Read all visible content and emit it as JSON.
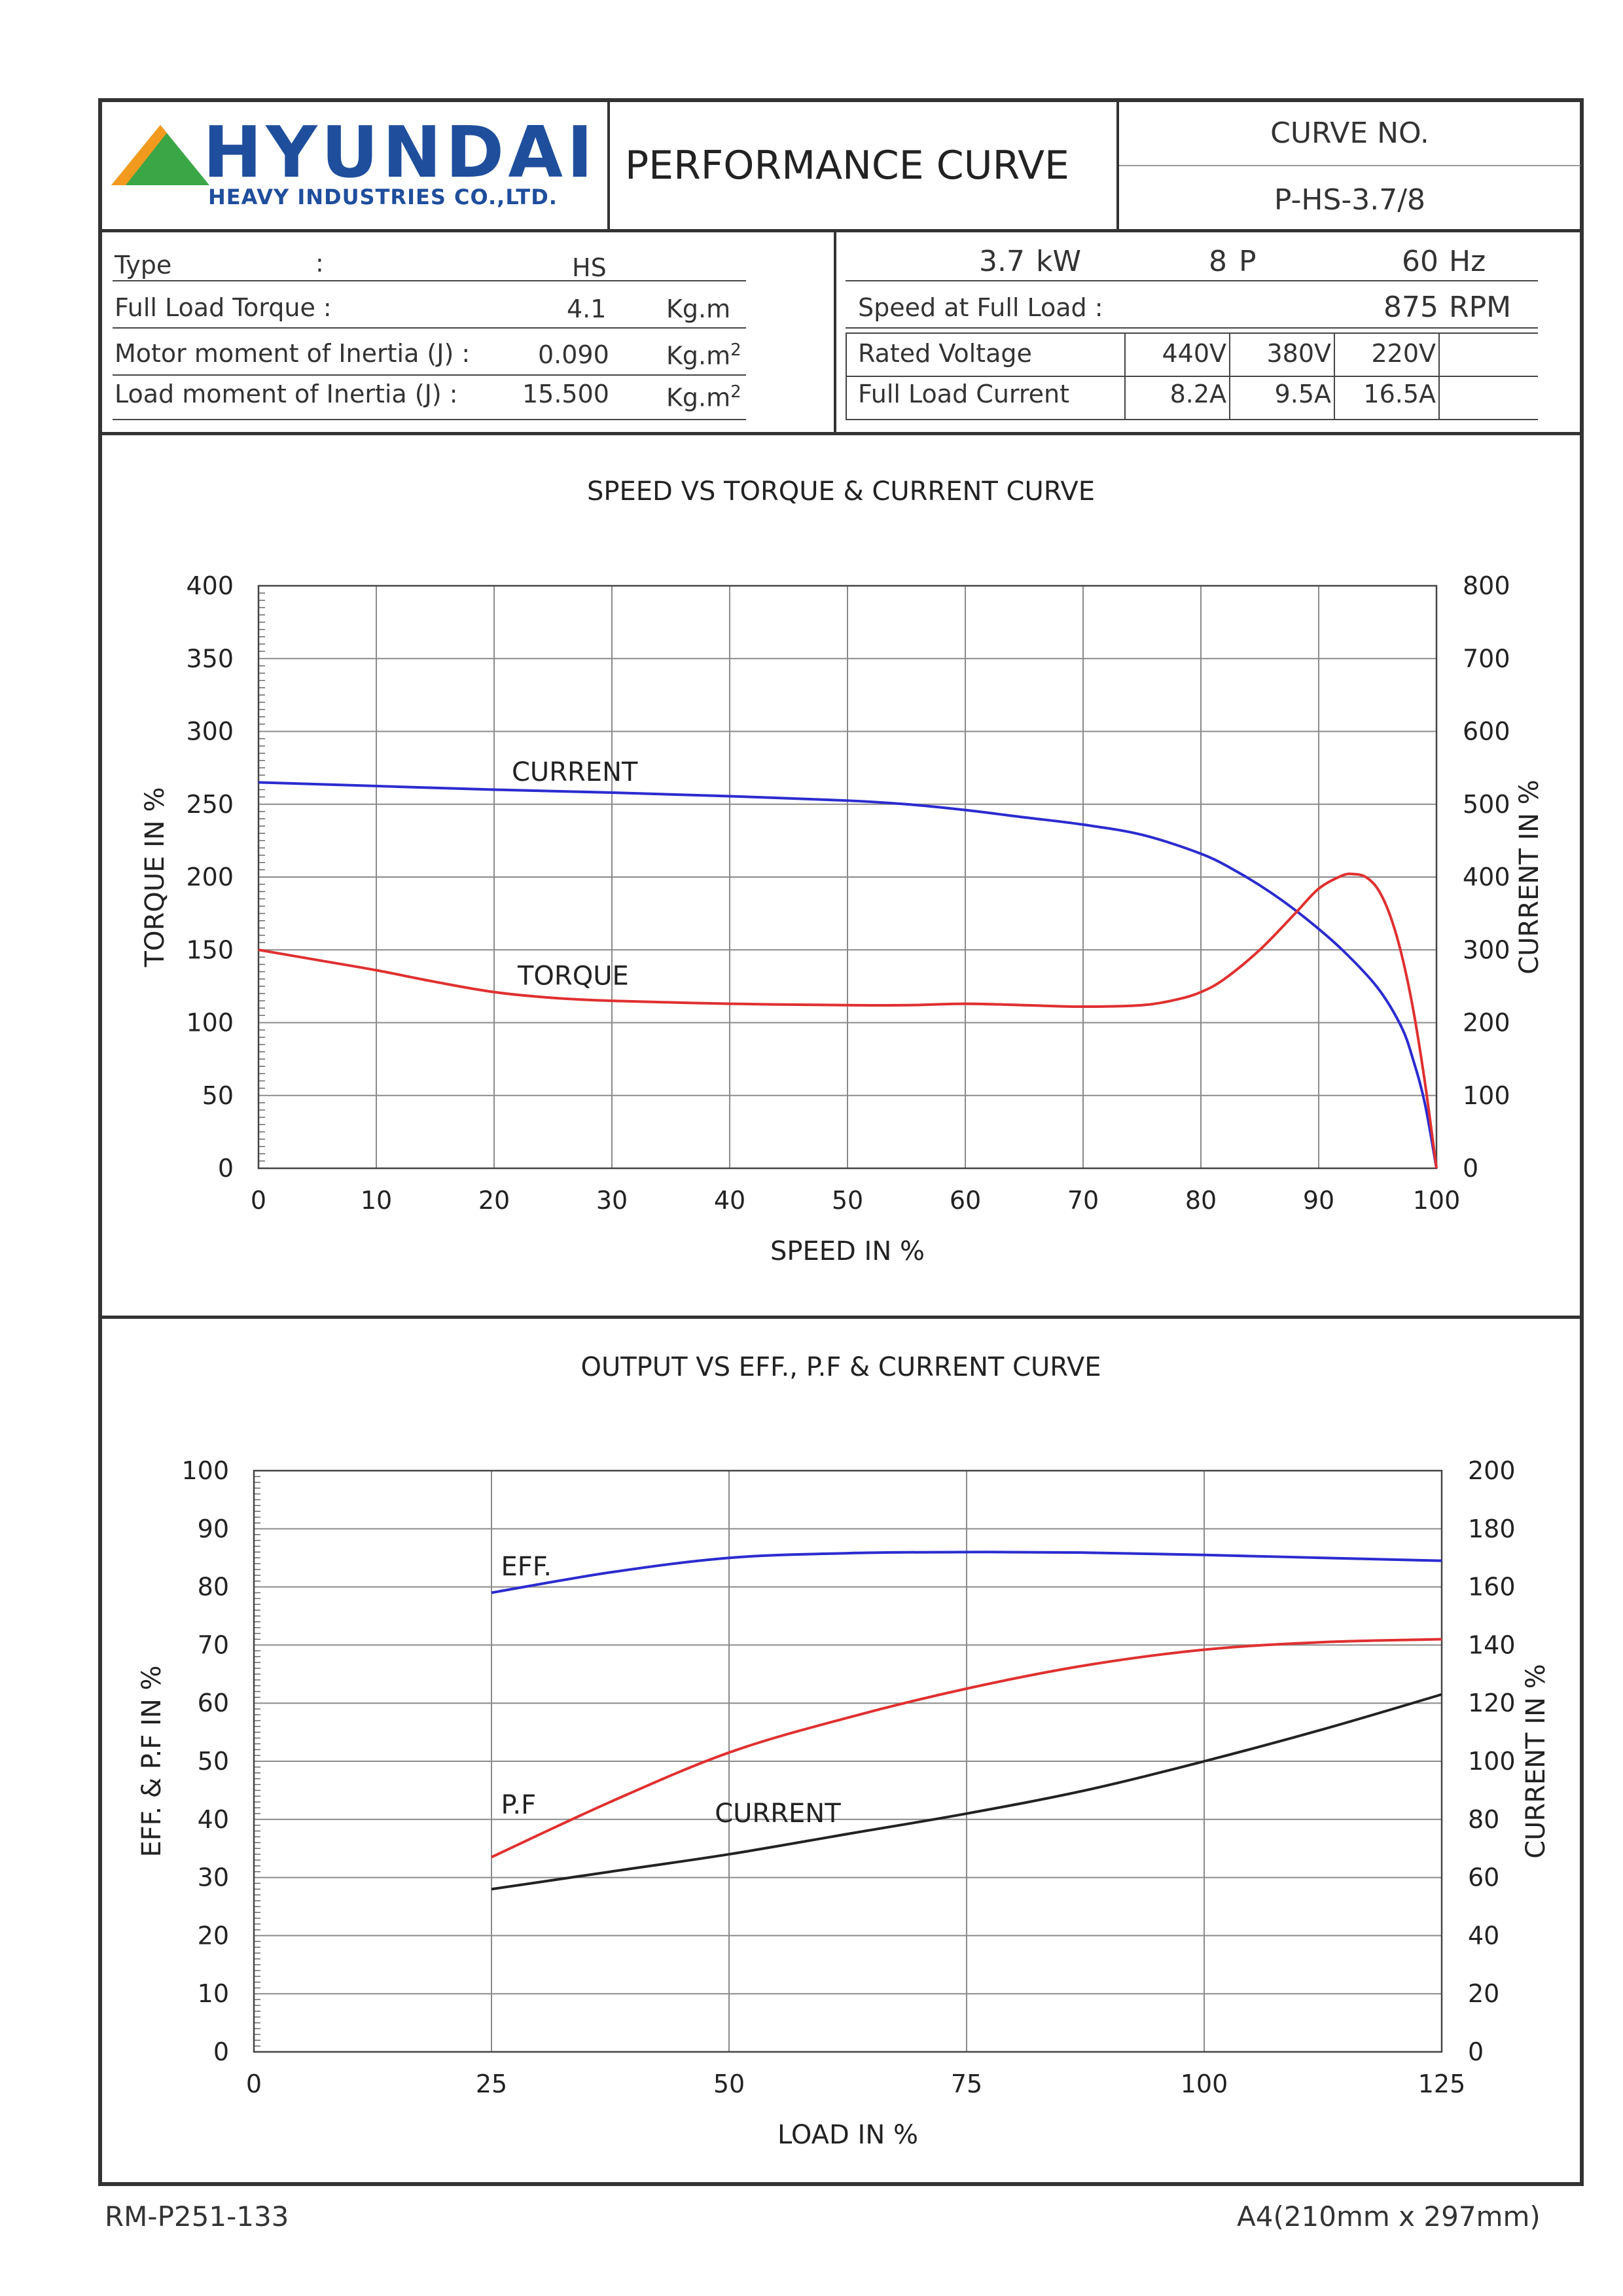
{
  "header": {
    "brand": "HYUNDAI",
    "brand_sub": "HEAVY INDUSTRIES CO.,LTD.",
    "title": "PERFORMANCE CURVE",
    "curve_no_label": "CURVE NO.",
    "curve_no": "P-HS-3.7/8"
  },
  "specs_left": {
    "type_label": "Type",
    "type_colon": ":",
    "type_value": "HS",
    "torque_label": "Full Load Torque :",
    "torque_value": "4.1",
    "torque_unit": "Kg.m",
    "motor_inertia_label": "Motor moment of Inertia (J) :",
    "motor_inertia_value": "0.090",
    "motor_inertia_unit": "Kg.m",
    "load_inertia_label": "Load moment of Inertia (J) :",
    "load_inertia_value": "15.500",
    "load_inertia_unit": "Kg.m",
    "superscript": "2"
  },
  "specs_right": {
    "power_value": "3.7",
    "power_unit": "kW",
    "poles_value": "8",
    "poles_unit": "P",
    "freq_value": "60",
    "freq_unit": "Hz",
    "speed_label": "Speed at Full Load :",
    "speed_value": "875",
    "speed_unit": "RPM",
    "voltage_label": "Rated Voltage",
    "current_label": "Full Load Current",
    "voltages": [
      "440V",
      "380V",
      "220V"
    ],
    "currents": [
      "8.2A",
      "9.5A",
      "16.5A"
    ]
  },
  "footer": {
    "doc_no": "RM-P251-133",
    "paper": "A4(210mm x 297mm)"
  },
  "colors": {
    "blue": "#2b2bd0",
    "red": "#e03030",
    "black": "#222222",
    "grid": "#8a8a8a",
    "logo_blue": "#1f4e9c",
    "logo_orange": "#f29a1e",
    "logo_green": "#3aa646"
  },
  "chart_data": [
    {
      "type": "line",
      "title": "SPEED VS TORQUE & CURRENT CURVE",
      "xlabel": "SPEED IN %",
      "ylabel": "TORQUE IN %",
      "y2label": "CURRENT IN %",
      "xlim": [
        0,
        100
      ],
      "ylim": [
        0,
        400
      ],
      "y2lim": [
        0,
        800
      ],
      "xticks": [
        "0",
        "10",
        "20",
        "30",
        "40",
        "50",
        "60",
        "70",
        "80",
        "90",
        "100"
      ],
      "yticks": [
        "0",
        "50",
        "100",
        "150",
        "200",
        "250",
        "300",
        "350",
        "400"
      ],
      "y2ticks": [
        "0",
        "100",
        "200",
        "300",
        "400",
        "500",
        "600",
        "700",
        "800"
      ],
      "grid": true,
      "series": [
        {
          "name": "CURRENT",
          "axis": "right",
          "color": "#2b2bd0",
          "x": [
            0,
            10,
            20,
            30,
            40,
            50,
            55,
            60,
            65,
            70,
            75,
            80,
            83,
            86,
            89,
            92,
            95,
            97,
            98,
            99,
            100
          ],
          "values": [
            530,
            525,
            520,
            516,
            511,
            505,
            500,
            492,
            482,
            472,
            458,
            432,
            408,
            378,
            342,
            300,
            248,
            195,
            150,
            90,
            0
          ]
        },
        {
          "name": "TORQUE",
          "axis": "left",
          "color": "#e03030",
          "x": [
            0,
            5,
            10,
            15,
            20,
            25,
            30,
            40,
            50,
            55,
            60,
            65,
            70,
            75,
            78,
            80,
            82,
            85,
            88,
            90,
            92,
            93,
            94,
            95,
            96,
            97,
            98,
            99,
            100
          ],
          "values": [
            150,
            143,
            136,
            128,
            121,
            117,
            115,
            113,
            112,
            112,
            113,
            112,
            111,
            112,
            116,
            121,
            130,
            150,
            175,
            192,
            201,
            202,
            200,
            192,
            175,
            148,
            110,
            60,
            0
          ]
        }
      ],
      "annotations": [
        "CURRENT",
        "TORQUE"
      ]
    },
    {
      "type": "line",
      "title": "OUTPUT VS EFF., P.F & CURRENT CURVE",
      "xlabel": "LOAD IN %",
      "ylabel": "EFF. & P.F IN %",
      "y2label": "CURRENT IN %",
      "xlim": [
        0,
        125
      ],
      "ylim": [
        0,
        100
      ],
      "y2lim": [
        0,
        200
      ],
      "xticks": [
        "0",
        "25",
        "50",
        "75",
        "100",
        "125"
      ],
      "yticks": [
        "0",
        "10",
        "20",
        "30",
        "40",
        "50",
        "60",
        "70",
        "80",
        "90",
        "100"
      ],
      "y2ticks": [
        "0",
        "20",
        "40",
        "60",
        "80",
        "100",
        "120",
        "140",
        "160",
        "180",
        "200"
      ],
      "grid": true,
      "series": [
        {
          "name": "EFF.",
          "axis": "left",
          "color": "#2b2bd0",
          "x": [
            25,
            37.5,
            50,
            62.5,
            75,
            87.5,
            100,
            112.5,
            125
          ],
          "values": [
            79,
            82.5,
            85,
            85.8,
            86,
            85.9,
            85.5,
            85,
            84.5
          ]
        },
        {
          "name": "P.F",
          "axis": "left",
          "color": "#e03030",
          "x": [
            25,
            37.5,
            50,
            62.5,
            75,
            87.5,
            100,
            112.5,
            125
          ],
          "values": [
            33.5,
            43,
            51.5,
            57.5,
            62.5,
            66.5,
            69.2,
            70.5,
            71
          ]
        },
        {
          "name": "CURRENT",
          "axis": "right",
          "color": "#222222",
          "x": [
            25,
            37.5,
            50,
            62.5,
            75,
            87.5,
            100,
            112.5,
            125
          ],
          "values": [
            56,
            62,
            68,
            75,
            82,
            90,
            100,
            111,
            123
          ]
        }
      ],
      "annotations": [
        "EFF.",
        "P.F",
        "CURRENT"
      ]
    }
  ]
}
